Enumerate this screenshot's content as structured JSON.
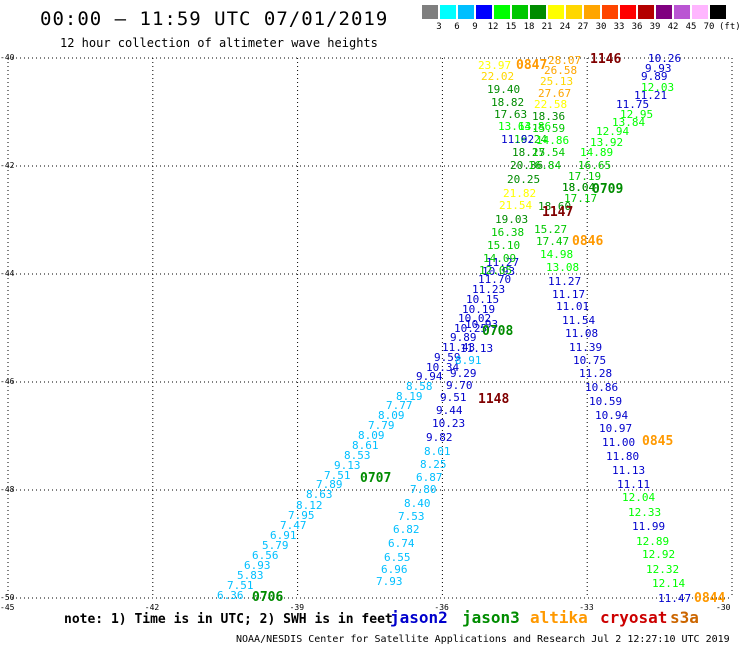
{
  "title": "00:00 – 11:59 UTC 07/01/2019",
  "subtitle": "12 hour collection of altimeter wave heights",
  "color_scale": {
    "labels": [
      "3",
      "6",
      "9",
      "12",
      "15",
      "18",
      "21",
      "24",
      "27",
      "30",
      "33",
      "36",
      "39",
      "42",
      "45",
      "70",
      "(ft)"
    ],
    "colors": [
      "#7f7f7f",
      "#00ffff",
      "#00bfff",
      "#0000ff",
      "#00ff00",
      "#00c800",
      "#008c00",
      "#ffff00",
      "#ffd700",
      "#ffa500",
      "#ff4500",
      "#ff0000",
      "#b40000",
      "#800080",
      "#ba55d3",
      "#ffb6ff",
      "#000000"
    ]
  },
  "axes": {
    "lat_labels": [
      "-40",
      "-42",
      "-44",
      "-46",
      "-48",
      "-50"
    ],
    "lon_labels": [
      "-45",
      "-42",
      "-39",
      "-36",
      "-33",
      "-30"
    ]
  },
  "note": "note: 1) Time is in UTC; 2) SWH is in feet",
  "legend": [
    {
      "name": "jason2",
      "color": "#0000cc"
    },
    {
      "name": "jason3",
      "color": "#008c00"
    },
    {
      "name": "altika",
      "color": "#ff9900"
    },
    {
      "name": "cryosat",
      "color": "#cc0000"
    },
    {
      "name": "s3a",
      "color": "#cc6600"
    }
  ],
  "footer": "NOAA/NESDIS Center for Satellite Applications and Research   Jul  2 12:27:10 UTC 2019",
  "track_labels": [
    {
      "text": "0706",
      "color": "#008c00"
    },
    {
      "text": "0707",
      "color": "#008c00"
    },
    {
      "text": "0708",
      "color": "#008c00"
    },
    {
      "text": "0709",
      "color": "#008c00"
    },
    {
      "text": "0845",
      "color": "#ff9900"
    },
    {
      "text": "0846",
      "color": "#ff9900"
    },
    {
      "text": "0847",
      "color": "#ff9900"
    },
    {
      "text": "0844",
      "color": "#ff9900"
    },
    {
      "text": "1146",
      "color": "#800000"
    },
    {
      "text": "1147",
      "color": "#800000"
    },
    {
      "text": "1148",
      "color": "#800000"
    }
  ],
  "observations": [
    {
      "text": "6.36",
      "color": "#00bfff"
    },
    {
      "text": "7.51",
      "color": "#00bfff"
    },
    {
      "text": "5.83",
      "color": "#00bfff"
    },
    {
      "text": "6.93",
      "color": "#00bfff"
    },
    {
      "text": "6.56",
      "color": "#00bfff"
    },
    {
      "text": "5.79",
      "color": "#00bfff"
    },
    {
      "text": "6.91",
      "color": "#00bfff"
    },
    {
      "text": "7.47",
      "color": "#00bfff"
    },
    {
      "text": "7.95",
      "color": "#00bfff"
    },
    {
      "text": "8.12",
      "color": "#00bfff"
    },
    {
      "text": "8.63",
      "color": "#00bfff"
    },
    {
      "text": "7.89",
      "color": "#00bfff"
    },
    {
      "text": "7.51",
      "color": "#00bfff"
    },
    {
      "text": "9.13",
      "color": "#00bfff"
    },
    {
      "text": "8.53",
      "color": "#00bfff"
    },
    {
      "text": "8.61",
      "color": "#00bfff"
    },
    {
      "text": "8.09",
      "color": "#00bfff"
    },
    {
      "text": "7.79",
      "color": "#00bfff"
    },
    {
      "text": "8.09",
      "color": "#00bfff"
    },
    {
      "text": "7.77",
      "color": "#00bfff"
    },
    {
      "text": "8.19",
      "color": "#00bfff"
    },
    {
      "text": "8.58",
      "color": "#00bfff"
    },
    {
      "text": "9.94",
      "color": "#0000cc"
    },
    {
      "text": "10.34",
      "color": "#0000cc"
    },
    {
      "text": "9.59",
      "color": "#0000cc"
    },
    {
      "text": "11.43",
      "color": "#0000cc"
    },
    {
      "text": "9.89",
      "color": "#0000cc"
    },
    {
      "text": "10.25",
      "color": "#0000cc"
    },
    {
      "text": "10.02",
      "color": "#0000cc"
    },
    {
      "text": "10.19",
      "color": "#0000cc"
    },
    {
      "text": "10.15",
      "color": "#0000cc"
    },
    {
      "text": "11.23",
      "color": "#0000cc"
    },
    {
      "text": "11.70",
      "color": "#0000cc"
    },
    {
      "text": "10.93",
      "color": "#0000cc"
    },
    {
      "text": "11.27",
      "color": "#0000cc"
    },
    {
      "text": "7.93",
      "color": "#00bfff"
    },
    {
      "text": "6.96",
      "color": "#00bfff"
    },
    {
      "text": "6.55",
      "color": "#00bfff"
    },
    {
      "text": "6.74",
      "color": "#00bfff"
    },
    {
      "text": "6.82",
      "color": "#00bfff"
    },
    {
      "text": "7.53",
      "color": "#00bfff"
    },
    {
      "text": "8.40",
      "color": "#00bfff"
    },
    {
      "text": "7.80",
      "color": "#00bfff"
    },
    {
      "text": "6.87",
      "color": "#00bfff"
    },
    {
      "text": "8.25",
      "color": "#00bfff"
    },
    {
      "text": "8.01",
      "color": "#00bfff"
    },
    {
      "text": "9.82",
      "color": "#0000cc"
    },
    {
      "text": "10.23",
      "color": "#0000cc"
    },
    {
      "text": "9.44",
      "color": "#0000cc"
    },
    {
      "text": "9.51",
      "color": "#0000cc"
    },
    {
      "text": "9.70",
      "color": "#0000cc"
    },
    {
      "text": "9.29",
      "color": "#0000cc"
    },
    {
      "text": "8.91",
      "color": "#00bfff"
    },
    {
      "text": "11.13",
      "color": "#0000cc"
    },
    {
      "text": "10.93",
      "color": "#0000cc"
    },
    {
      "text": "12.05",
      "color": "#00c800"
    },
    {
      "text": "14.09",
      "color": "#00c800"
    },
    {
      "text": "15.10",
      "color": "#00c800"
    },
    {
      "text": "16.38",
      "color": "#00c800"
    },
    {
      "text": "19.03",
      "color": "#008c00"
    },
    {
      "text": "21.54",
      "color": "#ffff00"
    },
    {
      "text": "21.82",
      "color": "#ffff00"
    },
    {
      "text": "20.25",
      "color": "#008c00"
    },
    {
      "text": "20.36",
      "color": "#008c00"
    },
    {
      "text": "18.27",
      "color": "#008c00"
    },
    {
      "text": "16.24",
      "color": "#00c800"
    },
    {
      "text": "13.86",
      "color": "#00ff00"
    },
    {
      "text": "11.92",
      "color": "#0000cc"
    },
    {
      "text": "13.64",
      "color": "#00ff00"
    },
    {
      "text": "17.63",
      "color": "#008c00"
    },
    {
      "text": "18.82",
      "color": "#008c00"
    },
    {
      "text": "19.40",
      "color": "#008c00"
    },
    {
      "text": "22.02",
      "color": "#ffd700"
    },
    {
      "text": "23.97",
      "color": "#ffff00"
    },
    {
      "text": "28.07",
      "color": "#ffa500"
    },
    {
      "text": "26.58",
      "color": "#ffa500"
    },
    {
      "text": "25.13",
      "color": "#ffd700"
    },
    {
      "text": "27.67",
      "color": "#ffa500"
    },
    {
      "text": "22.58",
      "color": "#ffff00"
    },
    {
      "text": "18.36",
      "color": "#008c00"
    },
    {
      "text": "15.59",
      "color": "#00c800"
    },
    {
      "text": "14.86",
      "color": "#00ff00"
    },
    {
      "text": "15.54",
      "color": "#00c800"
    },
    {
      "text": "16.84",
      "color": "#00c800"
    },
    {
      "text": "18.04",
      "color": "#008c00"
    },
    {
      "text": "17.17",
      "color": "#00c800"
    },
    {
      "text": "18.60",
      "color": "#008c00"
    },
    {
      "text": "15.27",
      "color": "#00c800"
    },
    {
      "text": "17.47",
      "color": "#00c800"
    },
    {
      "text": "14.98",
      "color": "#00ff00"
    },
    {
      "text": "13.08",
      "color": "#00ff00"
    },
    {
      "text": "10.26",
      "color": "#0000cc"
    },
    {
      "text": "9.93",
      "color": "#0000cc"
    },
    {
      "text": "9.89",
      "color": "#0000cc"
    },
    {
      "text": "12.03",
      "color": "#00ff00"
    },
    {
      "text": "11.21",
      "color": "#0000cc"
    },
    {
      "text": "11.75",
      "color": "#0000cc"
    },
    {
      "text": "12.95",
      "color": "#00ff00"
    },
    {
      "text": "13.84",
      "color": "#00ff00"
    },
    {
      "text": "12.94",
      "color": "#00ff00"
    },
    {
      "text": "13.92",
      "color": "#00ff00"
    },
    {
      "text": "14.89",
      "color": "#00ff00"
    },
    {
      "text": "16.65",
      "color": "#00c800"
    },
    {
      "text": "17.19",
      "color": "#00c800"
    },
    {
      "text": "18.04",
      "color": "#008c00"
    },
    {
      "text": "11.27",
      "color": "#0000cc"
    },
    {
      "text": "11.17",
      "color": "#0000cc"
    },
    {
      "text": "11.01",
      "color": "#0000cc"
    },
    {
      "text": "11.54",
      "color": "#0000cc"
    },
    {
      "text": "11.08",
      "color": "#0000cc"
    },
    {
      "text": "11.39",
      "color": "#0000cc"
    },
    {
      "text": "10.75",
      "color": "#0000cc"
    },
    {
      "text": "11.28",
      "color": "#0000cc"
    },
    {
      "text": "10.86",
      "color": "#0000cc"
    },
    {
      "text": "10.59",
      "color": "#0000cc"
    },
    {
      "text": "10.94",
      "color": "#0000cc"
    },
    {
      "text": "10.97",
      "color": "#0000cc"
    },
    {
      "text": "11.00",
      "color": "#0000cc"
    },
    {
      "text": "11.80",
      "color": "#0000cc"
    },
    {
      "text": "11.13",
      "color": "#0000cc"
    },
    {
      "text": "11.11",
      "color": "#0000cc"
    },
    {
      "text": "12.04",
      "color": "#00ff00"
    },
    {
      "text": "12.33",
      "color": "#00ff00"
    },
    {
      "text": "11.99",
      "color": "#0000cc"
    },
    {
      "text": "12.89",
      "color": "#00ff00"
    },
    {
      "text": "12.92",
      "color": "#00ff00"
    },
    {
      "text": "12.32",
      "color": "#00ff00"
    },
    {
      "text": "12.14",
      "color": "#00ff00"
    },
    {
      "text": "11.47",
      "color": "#0000cc"
    }
  ]
}
